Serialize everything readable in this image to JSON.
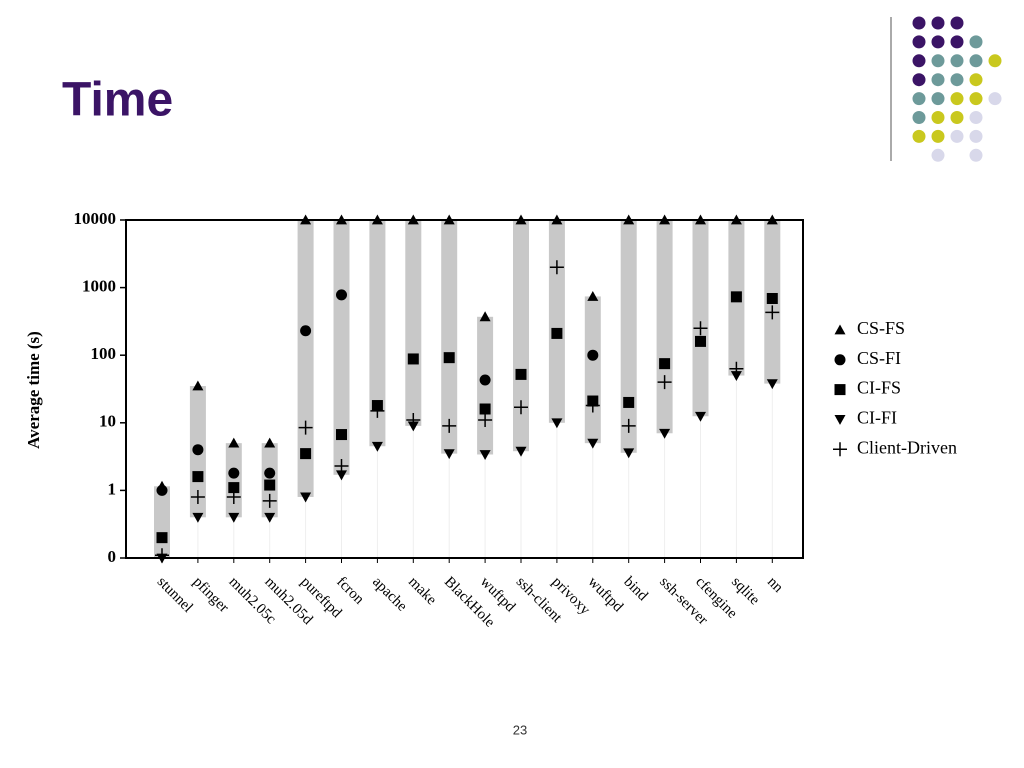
{
  "slide": {
    "title": "Time",
    "page_number": "23"
  },
  "chart_data": {
    "type": "range-marker",
    "y_label": "Average time (s)",
    "log_scale": true,
    "ylim": [
      0.1,
      10000
    ],
    "yticks": [
      {
        "value": 0.1,
        "label": "0"
      },
      1,
      10,
      100,
      1000,
      10000
    ],
    "categories": [
      "stunnel",
      "pfinger",
      "muh2.05c",
      "muh2.05d",
      "pureftpd",
      "fcron",
      "apache",
      "make",
      "BlackHole",
      "wuftpd",
      "ssh-client",
      "privoxy",
      "wuftpd",
      "bind",
      "ssh-server",
      "cfengine",
      "sqlite",
      "nn"
    ],
    "range_color": "#c8c8c8",
    "series": [
      {
        "name": "CS-FS",
        "color": "#000000",
        "marker": "triangle-up",
        "values": [
          1.15,
          35,
          5,
          5,
          10000,
          10000,
          10000,
          10000,
          10000,
          370,
          10000,
          10000,
          740,
          10000,
          10000,
          10000,
          10000,
          10000
        ]
      },
      {
        "name": "CS-FI",
        "color": "#000000",
        "marker": "circle",
        "values": [
          1,
          4,
          1.8,
          1.8,
          230,
          780,
          null,
          null,
          null,
          43,
          null,
          null,
          100,
          null,
          null,
          null,
          null,
          null
        ]
      },
      {
        "name": "CI-FS",
        "color": "#000000",
        "marker": "square",
        "values": [
          0.2,
          1.6,
          1.1,
          1.2,
          3.5,
          6.7,
          18,
          88,
          92,
          16,
          52,
          210,
          21,
          20,
          75,
          160,
          730,
          690
        ]
      },
      {
        "name": "CI-FI",
        "color": "#000000",
        "marker": "triangle-down",
        "values": [
          0.1,
          0.4,
          0.4,
          0.4,
          0.8,
          1.7,
          4.5,
          9,
          3.5,
          3.4,
          3.8,
          10,
          5,
          3.6,
          7,
          12.5,
          50,
          38
        ]
      },
      {
        "name": "Client-Driven",
        "color": "#000000",
        "marker": "plus",
        "values": [
          0.11,
          0.8,
          0.8,
          0.7,
          8.5,
          2.3,
          15,
          11,
          9,
          11,
          17,
          2000,
          18,
          9,
          40,
          250,
          63,
          430
        ]
      }
    ]
  }
}
